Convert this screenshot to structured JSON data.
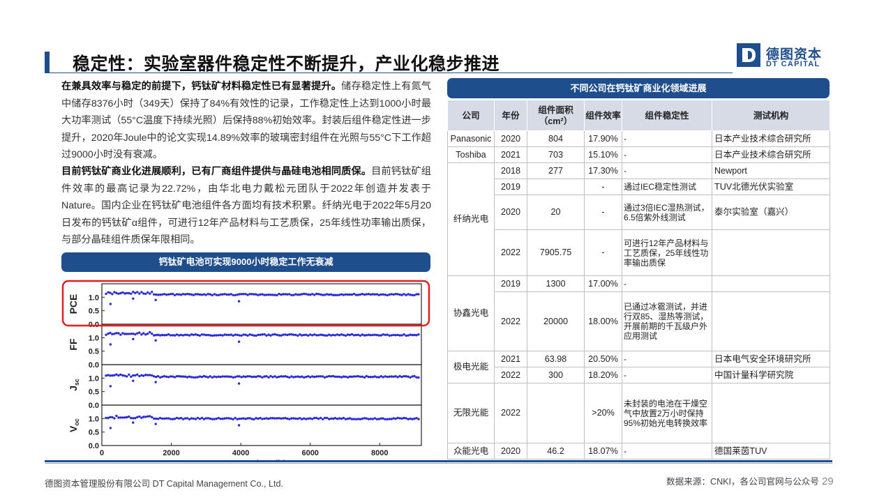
{
  "header": {
    "title": "稳定性：实验室器件稳定性不断提升，产业化稳步推进",
    "logo_cn": "德图资本",
    "logo_en": "DT CAPITAL"
  },
  "left": {
    "para1_bold": "在兼具效率与稳定的前提下，钙钛矿材料稳定性已有显著提升。",
    "para1_text": "储存稳定性上有氮气中储存8376小时（349天）保持了84%有效性的记录，工作稳定性上达到1000小时最大功率测试（55°C温度下持续光照）后保持88%初始效率。封装后组件稳定性进一步提升，2020年Joule中的论文实现14.89%效率的玻璃密封组件在光照与55°C下工作超过9000小时没有衰减。",
    "para2_bold": "目前钙钛矿商业化进展顺利，已有厂商组件提供与晶硅电池相同质保。",
    "para2_text": "目前钙钛矿组件效率的最高记录为22.72%，由华北电力戴松元团队于2022年创造并发表于Nature。国内企业在钙钛矿电池组件各方面均有技术积累。纤纳光电于2022年5月20日发布的钙钛矿α组件，可进行12年产品材料与工艺质保，25年线性功率输出质保，与部分晶硅组件质保年限相同。",
    "banner": "钙钛矿电池可实现9000小时稳定工作无衰减"
  },
  "chart_data": {
    "type": "scatter",
    "xlabel": "Time (h)",
    "xlim": [
      0,
      9200
    ],
    "xticks": [
      "0",
      "2000",
      "4000",
      "6000",
      "8000"
    ],
    "ylim": [
      0.0,
      1.5
    ],
    "yticks": [
      "0.0",
      "0.5",
      "1.0"
    ],
    "panels": [
      {
        "ylabel": "PCE",
        "level": 1.1
      },
      {
        "ylabel": "FF",
        "level": 1.1
      },
      {
        "ylabel": "J",
        "ylabel_sub": "sc",
        "level": 1.05
      },
      {
        "ylabel": "V",
        "ylabel_sub": "oc",
        "level": 1.0
      }
    ],
    "highlight_panel": "PCE",
    "colors": {
      "points": "#2b2bd6",
      "highlight": "#e02020"
    }
  },
  "table": {
    "banner": "不同公司在钙钛矿商业化领域进展",
    "headers": [
      "公司",
      "年份",
      "组件面积\n（cm²）",
      "组件效率",
      "组件稳定性",
      "测试机构"
    ],
    "rows": [
      {
        "company": "Panasonic",
        "year": "2020",
        "area": "804",
        "eff": "17.90%",
        "stab": "-",
        "org": "日本产业技术综合研究所"
      },
      {
        "company": "Toshiba",
        "year": "2021",
        "area": "703",
        "eff": "15.10%",
        "stab": "-",
        "org": "日本产业技术综合研究所"
      },
      {
        "company": "纤纳光电",
        "year": "2018",
        "area": "277",
        "eff": "17.30%",
        "stab": "-",
        "org": "Newport"
      },
      {
        "company": "",
        "year": "2019",
        "area": "",
        "eff": "-",
        "stab": "通过IEC稳定性测试",
        "org": "TUV北德光伏实验室"
      },
      {
        "company": "",
        "year": "2020",
        "area": "20",
        "eff": "-",
        "stab": "通过3倍IEC湿热测试，6.5倍紫外线测试",
        "org": "泰尔实验室（嘉兴）"
      },
      {
        "company": "",
        "year": "2022",
        "area": "7905.75",
        "eff": "-",
        "stab": "可进行12年产品材料与工艺质保，25年线性功率输出质保",
        "org": ""
      },
      {
        "company": "协鑫光电",
        "year": "2019",
        "area": "1300",
        "eff": "17.00%",
        "stab": "-",
        "org": ""
      },
      {
        "company": "",
        "year": "2022",
        "area": "20000",
        "eff": "18.00%",
        "stab": "已通过冰雹测试，并进行双85、湿热等测试，开展前期的千瓦级户外应用测试",
        "org": ""
      },
      {
        "company": "极电光能",
        "year": "2021",
        "area": "63.98",
        "eff": "20.50%",
        "stab": "-",
        "org": "日本电气安全环境研究所"
      },
      {
        "company": "",
        "year": "2022",
        "area": "300",
        "eff": "18.20%",
        "stab": "-",
        "org": "中国计量科学研究院"
      },
      {
        "company": "无限光能",
        "year": "2022",
        "area": "",
        "eff": ">20%",
        "stab": "未封装的电池在干燥空气中放置2万小时保持95%初始光电转换效率",
        "org": ""
      },
      {
        "company": "众能光电",
        "year": "2020",
        "area": "46.2",
        "eff": "18.07%",
        "stab": "-",
        "org": "德国莱茵TUV"
      }
    ]
  },
  "footer": {
    "company": "德图资本管理股份有限公司  DT Capital Management  Co., Ltd.",
    "source": "数据来源：CNKI，各公司官网与公众号",
    "page": "29"
  }
}
